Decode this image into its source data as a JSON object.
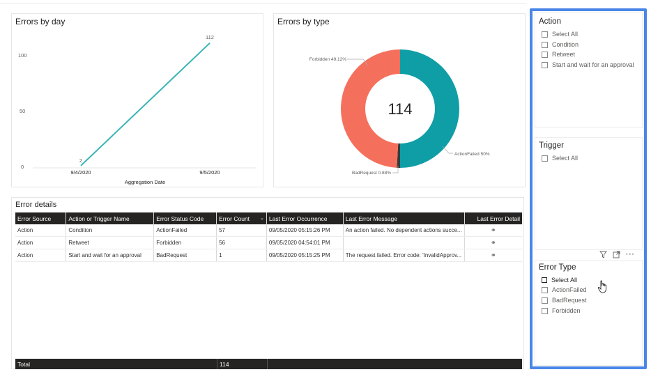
{
  "line_chart": {
    "title": "Errors by day",
    "xlabel": "Aggregation Date",
    "ytick_labels": [
      "100",
      "50",
      "0"
    ],
    "xtick_labels": [
      "9/4/2020",
      "9/5/2020"
    ],
    "point_labels": [
      "2",
      "112"
    ],
    "color": "#39B4B6"
  },
  "donut": {
    "title": "Errors by type",
    "center_value": "114",
    "slice_labels": [
      "Forbidden 49.12%",
      "ActionFailed 50%",
      "BadRequest 0.88%"
    ]
  },
  "chart_data": [
    {
      "type": "line",
      "title": "Errors by day",
      "xlabel": "Aggregation Date",
      "ylabel": "",
      "x": [
        "9/4/2020",
        "9/5/2020"
      ],
      "series": [
        {
          "values": [
            2,
            112
          ]
        }
      ],
      "ylim": [
        0,
        120
      ],
      "grid": false
    },
    {
      "type": "pie",
      "title": "Errors by type",
      "categories": [
        "ActionFailed",
        "BadRequest",
        "Forbidden"
      ],
      "values": [
        50,
        0.88,
        49.12
      ],
      "colors": [
        "#0F9EA6",
        "#3A3A3A",
        "#F5705C"
      ],
      "center_label": "114"
    }
  ],
  "error_details": {
    "title": "Error details",
    "columns": [
      "Error Source",
      "Action or Trigger Name",
      "Error Status Code",
      "Error Count",
      "Last Error Occurrence",
      "Last Error Message",
      "Last Error Detail"
    ],
    "rows": [
      [
        "Action",
        "Condition",
        "ActionFailed",
        "57",
        "09/05/2020 05:15:26 PM",
        "An action failed. No dependent actions succe..."
      ],
      [
        "Action",
        "Retweet",
        "Forbidden",
        "56",
        "09/05/2020 04:54:01 PM",
        ""
      ],
      [
        "Action",
        "Start and wait for an approval",
        "BadRequest",
        "1",
        "09/05/2020 05:15:25 PM",
        "The request failed. Error code: 'InvalidApprov..."
      ]
    ],
    "total_label": "Total",
    "total_count": "114"
  },
  "slicers": {
    "action": {
      "title": "Action",
      "items": [
        "Select All",
        "Condition",
        "Retweet",
        "Start and wait for an approval"
      ]
    },
    "trigger": {
      "title": "Trigger",
      "items": [
        "Select All"
      ]
    },
    "error_type": {
      "title": "Error Type",
      "items": [
        "Select All",
        "ActionFailed",
        "BadRequest",
        "Forbidden"
      ]
    }
  },
  "colors": {
    "highlight_border": "#4A86E8",
    "header_bg": "#252423"
  }
}
